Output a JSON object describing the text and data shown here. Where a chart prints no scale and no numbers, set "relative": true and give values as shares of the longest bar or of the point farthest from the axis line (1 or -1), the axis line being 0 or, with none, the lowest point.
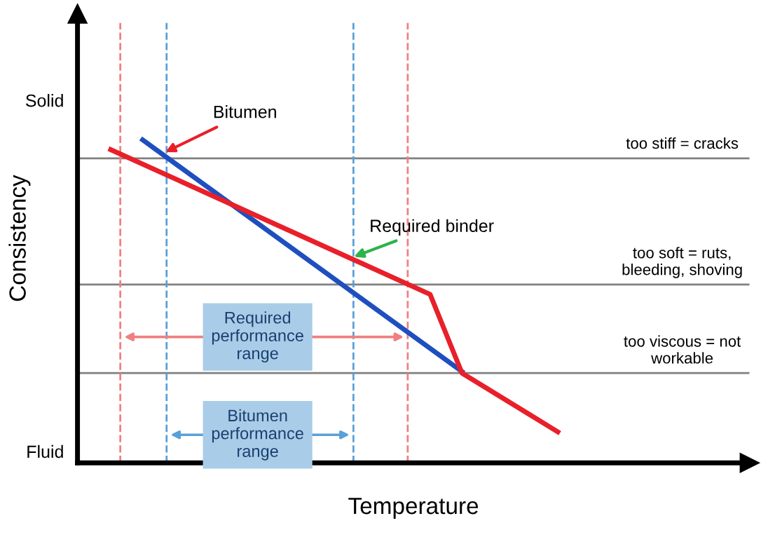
{
  "chart_data": {
    "type": "line",
    "relative": true,
    "xlabel": "Temperature",
    "ylabel": "Consistency",
    "marker": "none",
    "line_style": "solid",
    "categories": [
      null,
      null,
      null,
      null,
      null,
      null,
      null,
      null,
      null,
      null,
      null,
      null,
      null,
      null,
      null
    ],
    "series": [
      {
        "name": "Bitumen",
        "color": "#1f4fbf",
        "values": [
          null,
          1.0,
          null,
          null,
          null,
          null,
          null,
          null,
          null,
          null,
          null,
          0.283,
          null,
          null,
          null
        ]
      },
      {
        "name": "Required binder",
        "color": "#e8202a",
        "values": [
          0.97,
          null,
          null,
          null,
          null,
          null,
          null,
          null,
          null,
          null,
          0.522,
          0.278,
          null,
          null,
          0.096
        ]
      }
    ],
    "ref_lines": [
      {
        "axis": "y",
        "value": 0.943,
        "label": "too stiff = cracks",
        "color": "#808080",
        "line_style": "solid"
      },
      {
        "axis": "y",
        "value": 0.552,
        "label": "too soft = ruts,\nbleeding, shoving",
        "color": "#808080",
        "line_style": "solid"
      },
      {
        "axis": "y",
        "value": 0.278,
        "label": "too viscous = not\nworkable",
        "color": "#808080",
        "line_style": "solid"
      }
    ],
    "annotations": [
      "Solid",
      "Fluid",
      "Required\nperformance\nrange",
      "Bitumen\nperformance\nrange"
    ]
  }
}
